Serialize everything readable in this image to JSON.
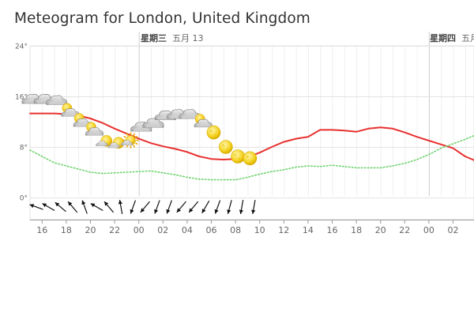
{
  "title": "Meteogram for London, United Kingdom",
  "day_labels": [
    {
      "weekday": "星期三",
      "date": "五月 13"
    },
    {
      "weekday": "星期四",
      "date": "五月"
    }
  ],
  "chart_data": {
    "type": "line",
    "x_ticks": [
      "16",
      "18",
      "20",
      "22",
      "00",
      "02",
      "04",
      "06",
      "08",
      "10",
      "12",
      "14",
      "16",
      "18",
      "20",
      "22",
      "00",
      "02",
      "0"
    ],
    "y_ticks": [
      "0°",
      "8°",
      "16°",
      "24°"
    ],
    "ylim": [
      -3.5,
      24
    ],
    "x_hours": [
      15,
      16,
      17,
      18,
      19,
      20,
      21,
      22,
      23,
      24,
      25,
      26,
      27,
      28,
      29,
      30,
      31,
      32,
      33,
      34,
      35,
      36,
      37,
      38,
      39,
      40,
      41,
      42,
      43,
      44,
      45,
      46,
      47,
      48,
      49,
      50,
      51,
      52,
      53,
      54
    ],
    "series": [
      {
        "color": "#e8312f",
        "style": "solid",
        "values": [
          13.3,
          13.3,
          13.3,
          13.2,
          13.0,
          12.5,
          11.8,
          10.9,
          10.1,
          9.3,
          8.6,
          8.1,
          7.7,
          7.2,
          6.5,
          6.1,
          6.0,
          6.1,
          6.4,
          7.1,
          8.0,
          8.8,
          9.3,
          9.6,
          10.7,
          10.7,
          10.6,
          10.4,
          10.9,
          11.1,
          10.9,
          10.3,
          9.6,
          9.0,
          8.4,
          7.8,
          6.5,
          5.7,
          5.2,
          4.8
        ]
      },
      {
        "color": "#6fd36f",
        "style": "dotted",
        "values": [
          7.5,
          6.5,
          5.5,
          5.0,
          4.5,
          4.0,
          3.8,
          3.9,
          4.0,
          4.1,
          4.2,
          3.9,
          3.6,
          3.2,
          2.9,
          2.8,
          2.8,
          2.8,
          3.2,
          3.7,
          4.1,
          4.4,
          4.8,
          5.0,
          4.9,
          5.1,
          4.9,
          4.7,
          4.7,
          4.7,
          5.0,
          5.4,
          6.0,
          6.8,
          7.8,
          8.5,
          9.2,
          10.0,
          10.4,
          10.5
        ]
      }
    ],
    "symbols": [
      {
        "h": 15,
        "type": "cloud",
        "temp": 15.4
      },
      {
        "h": 16,
        "type": "cloud",
        "temp": 15.4
      },
      {
        "h": 17,
        "type": "cloud",
        "temp": 15.2
      },
      {
        "h": 18,
        "type": "partly-cloudy",
        "temp": 13.4
      },
      {
        "h": 19,
        "type": "partly-cloudy",
        "temp": 11.8
      },
      {
        "h": 20,
        "type": "partly-cloudy",
        "temp": 10.4
      },
      {
        "h": 21,
        "type": "fair",
        "temp": 8.7
      },
      {
        "h": 22,
        "type": "fair",
        "temp": 8.4
      },
      {
        "h": 23,
        "type": "fair-day",
        "temp": 8.8
      },
      {
        "h": 24,
        "type": "cloud",
        "temp": 11.0
      },
      {
        "h": 25,
        "type": "cloud",
        "temp": 11.6
      },
      {
        "h": 26,
        "type": "cloud",
        "temp": 12.8
      },
      {
        "h": 27,
        "type": "cloud",
        "temp": 13.0
      },
      {
        "h": 28,
        "type": "cloud",
        "temp": 13.0
      },
      {
        "h": 29,
        "type": "partly-cloudy",
        "temp": 11.7
      },
      {
        "h": 30,
        "type": "moon",
        "temp": 10.3
      },
      {
        "h": 31,
        "type": "moon",
        "temp": 8.0
      },
      {
        "h": 32,
        "type": "moon",
        "temp": 6.5
      },
      {
        "h": 33,
        "type": "moon",
        "temp": 6.2
      }
    ],
    "winds": [
      {
        "h": 15,
        "dir": 290
      },
      {
        "h": 16,
        "dir": 300
      },
      {
        "h": 17,
        "dir": 310
      },
      {
        "h": 18,
        "dir": 320
      },
      {
        "h": 19,
        "dir": 340
      },
      {
        "h": 20,
        "dir": 300
      },
      {
        "h": 21,
        "dir": 320
      },
      {
        "h": 22,
        "dir": 350
      },
      {
        "h": 23,
        "dir": 200
      },
      {
        "h": 24,
        "dir": 220
      },
      {
        "h": 25,
        "dir": 200
      },
      {
        "h": 26,
        "dir": 200
      },
      {
        "h": 27,
        "dir": 220
      },
      {
        "h": 28,
        "dir": 220
      },
      {
        "h": 29,
        "dir": 210
      },
      {
        "h": 30,
        "dir": 200
      },
      {
        "h": 31,
        "dir": 195
      },
      {
        "h": 32,
        "dir": 190
      },
      {
        "h": 33,
        "dir": 190
      }
    ],
    "grid": true
  }
}
